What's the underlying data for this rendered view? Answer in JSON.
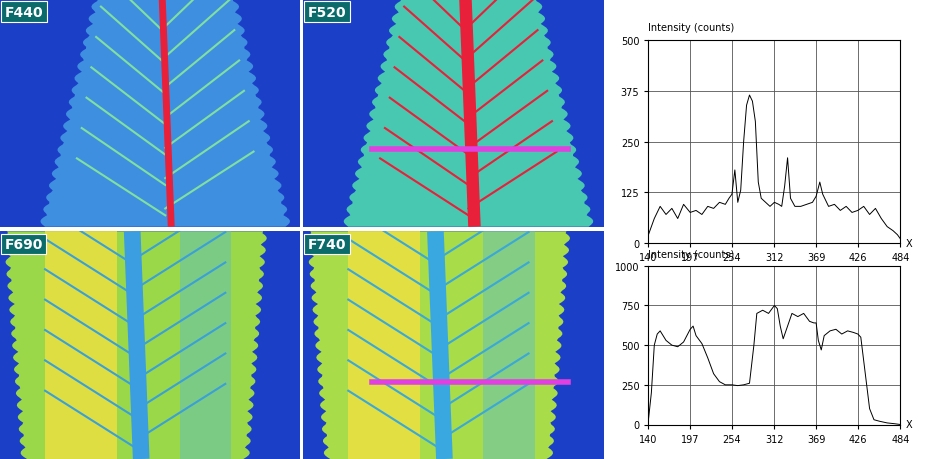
{
  "images": [
    {
      "label": "F440"
    },
    {
      "label": "F520"
    },
    {
      "label": "F690"
    },
    {
      "label": "F740"
    }
  ],
  "chart_data": [
    {
      "type": "line",
      "y_label": "Intensity (counts)",
      "x_label": "X",
      "color": "#000000",
      "grid": true,
      "x": [
        140,
        148,
        156,
        164,
        172,
        180,
        188,
        197,
        205,
        213,
        221,
        229,
        237,
        245,
        250,
        254,
        258,
        262,
        266,
        270,
        274,
        278,
        282,
        286,
        290,
        294,
        300,
        306,
        312,
        318,
        322,
        326,
        330,
        334,
        340,
        348,
        356,
        364,
        369,
        374,
        378,
        386,
        394,
        402,
        410,
        418,
        426,
        434,
        442,
        450,
        458,
        466,
        474,
        480,
        484
      ],
      "values": [
        20,
        60,
        90,
        70,
        85,
        60,
        95,
        75,
        80,
        70,
        90,
        85,
        100,
        95,
        110,
        120,
        180,
        100,
        130,
        250,
        340,
        365,
        350,
        300,
        150,
        110,
        100,
        90,
        100,
        95,
        90,
        140,
        210,
        110,
        90,
        90,
        95,
        100,
        115,
        150,
        120,
        90,
        95,
        80,
        90,
        75,
        80,
        90,
        70,
        85,
        60,
        40,
        30,
        20,
        10
      ],
      "xlim": [
        140,
        484
      ],
      "xticks": [
        140,
        197,
        254,
        312,
        369,
        426,
        484
      ],
      "ylim": [
        0,
        500
      ],
      "yticks": [
        0,
        125,
        250,
        375,
        500
      ]
    },
    {
      "type": "line",
      "y_label": "Intensity (counts)",
      "x_label": "X",
      "color": "#000000",
      "grid": true,
      "x": [
        140,
        144,
        148,
        152,
        156,
        164,
        172,
        180,
        188,
        197,
        201,
        205,
        213,
        221,
        229,
        237,
        245,
        254,
        262,
        270,
        278,
        284,
        288,
        296,
        304,
        312,
        316,
        320,
        324,
        330,
        336,
        344,
        352,
        360,
        366,
        369,
        372,
        376,
        380,
        388,
        396,
        404,
        412,
        420,
        426,
        430,
        434,
        438,
        442,
        448,
        456,
        466,
        476,
        484
      ],
      "values": [
        30,
        200,
        500,
        570,
        590,
        530,
        500,
        490,
        520,
        600,
        620,
        560,
        510,
        420,
        320,
        270,
        250,
        250,
        245,
        250,
        260,
        500,
        700,
        720,
        700,
        750,
        730,
        620,
        540,
        620,
        700,
        680,
        700,
        650,
        640,
        640,
        530,
        470,
        560,
        590,
        600,
        570,
        590,
        580,
        570,
        550,
        400,
        250,
        100,
        30,
        20,
        10,
        5,
        0
      ],
      "xlim": [
        140,
        484
      ],
      "xticks": [
        140,
        197,
        254,
        312,
        369,
        426,
        484
      ],
      "ylim": [
        0,
        1000
      ],
      "yticks": [
        0,
        250,
        500,
        750,
        1000
      ]
    }
  ]
}
